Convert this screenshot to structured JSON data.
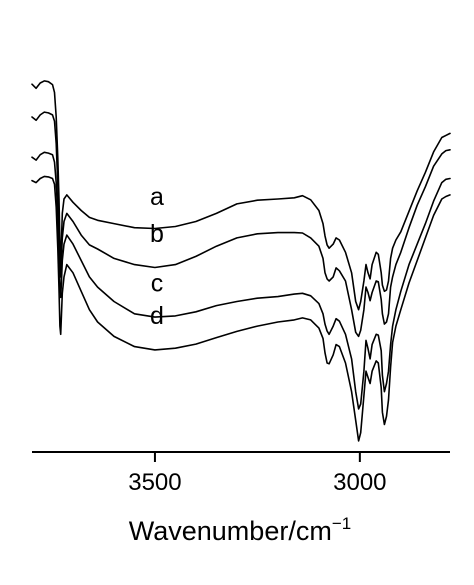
{
  "chart_data": {
    "type": "line",
    "xlabel": "Wavenumber/cm",
    "xlabel_superscript": "−1",
    "x_reversed": true,
    "xlim": [
      3800,
      2780
    ],
    "y_ticks_shown": false,
    "grid": false,
    "x_ticks": [
      {
        "value": 3500,
        "label": "3500"
      },
      {
        "value": 3000,
        "label": "3000"
      }
    ],
    "series": [
      {
        "name": "a",
        "points": [
          [
            3800,
            0.88
          ],
          [
            3790,
            0.87
          ],
          [
            3780,
            0.883
          ],
          [
            3770,
            0.888
          ],
          [
            3760,
            0.886
          ],
          [
            3750,
            0.879
          ],
          [
            3745,
            0.86
          ],
          [
            3741,
            0.8
          ],
          [
            3737,
            0.7
          ],
          [
            3734,
            0.6
          ],
          [
            3732,
            0.49
          ],
          [
            3730,
            0.44
          ],
          [
            3728,
            0.5
          ],
          [
            3726,
            0.565
          ],
          [
            3722,
            0.6
          ],
          [
            3715,
            0.61
          ],
          [
            3700,
            0.592
          ],
          [
            3680,
            0.572
          ],
          [
            3660,
            0.555
          ],
          [
            3640,
            0.548
          ],
          [
            3600,
            0.54
          ],
          [
            3550,
            0.53
          ],
          [
            3500,
            0.528
          ],
          [
            3450,
            0.533
          ],
          [
            3400,
            0.545
          ],
          [
            3350,
            0.565
          ],
          [
            3300,
            0.588
          ],
          [
            3250,
            0.597
          ],
          [
            3200,
            0.6
          ],
          [
            3160,
            0.603
          ],
          [
            3140,
            0.608
          ],
          [
            3120,
            0.598
          ],
          [
            3100,
            0.572
          ],
          [
            3090,
            0.54
          ],
          [
            3085,
            0.51
          ],
          [
            3080,
            0.488
          ],
          [
            3075,
            0.48
          ],
          [
            3065,
            0.49
          ],
          [
            3058,
            0.505
          ],
          [
            3050,
            0.5
          ],
          [
            3035,
            0.47
          ],
          [
            3020,
            0.42
          ],
          [
            3010,
            0.35
          ],
          [
            3003,
            0.33
          ],
          [
            2998,
            0.35
          ],
          [
            2990,
            0.4
          ],
          [
            2985,
            0.44
          ],
          [
            2980,
            0.42
          ],
          [
            2975,
            0.405
          ],
          [
            2970,
            0.44
          ],
          [
            2960,
            0.47
          ],
          [
            2955,
            0.465
          ],
          [
            2948,
            0.42
          ],
          [
            2945,
            0.39
          ],
          [
            2940,
            0.375
          ],
          [
            2935,
            0.378
          ],
          [
            2930,
            0.4
          ],
          [
            2925,
            0.455
          ],
          [
            2920,
            0.48
          ],
          [
            2912,
            0.5
          ],
          [
            2900,
            0.52
          ],
          [
            2880,
            0.57
          ],
          [
            2860,
            0.62
          ],
          [
            2840,
            0.665
          ],
          [
            2820,
            0.715
          ],
          [
            2800,
            0.75
          ],
          [
            2790,
            0.755
          ],
          [
            2780,
            0.76
          ]
        ]
      },
      {
        "name": "b",
        "points": [
          [
            3800,
            0.8
          ],
          [
            3790,
            0.792
          ],
          [
            3780,
            0.805
          ],
          [
            3770,
            0.812
          ],
          [
            3760,
            0.81
          ],
          [
            3750,
            0.805
          ],
          [
            3745,
            0.79
          ],
          [
            3741,
            0.735
          ],
          [
            3737,
            0.635
          ],
          [
            3734,
            0.53
          ],
          [
            3732,
            0.43
          ],
          [
            3730,
            0.41
          ],
          [
            3728,
            0.46
          ],
          [
            3726,
            0.505
          ],
          [
            3722,
            0.545
          ],
          [
            3715,
            0.565
          ],
          [
            3700,
            0.545
          ],
          [
            3680,
            0.512
          ],
          [
            3660,
            0.488
          ],
          [
            3640,
            0.478
          ],
          [
            3600,
            0.455
          ],
          [
            3550,
            0.44
          ],
          [
            3500,
            0.433
          ],
          [
            3450,
            0.44
          ],
          [
            3400,
            0.46
          ],
          [
            3350,
            0.485
          ],
          [
            3300,
            0.505
          ],
          [
            3250,
            0.515
          ],
          [
            3200,
            0.518
          ],
          [
            3160,
            0.518
          ],
          [
            3140,
            0.517
          ],
          [
            3120,
            0.505
          ],
          [
            3100,
            0.485
          ],
          [
            3090,
            0.455
          ],
          [
            3085,
            0.42
          ],
          [
            3080,
            0.405
          ],
          [
            3075,
            0.4
          ],
          [
            3065,
            0.41
          ],
          [
            3058,
            0.432
          ],
          [
            3050,
            0.425
          ],
          [
            3035,
            0.4
          ],
          [
            3020,
            0.33
          ],
          [
            3010,
            0.275
          ],
          [
            3003,
            0.265
          ],
          [
            2998,
            0.28
          ],
          [
            2990,
            0.33
          ],
          [
            2985,
            0.385
          ],
          [
            2980,
            0.372
          ],
          [
            2975,
            0.352
          ],
          [
            2970,
            0.372
          ],
          [
            2960,
            0.4
          ],
          [
            2955,
            0.398
          ],
          [
            2948,
            0.355
          ],
          [
            2945,
            0.32
          ],
          [
            2940,
            0.295
          ],
          [
            2935,
            0.3
          ],
          [
            2930,
            0.32
          ],
          [
            2925,
            0.385
          ],
          [
            2920,
            0.41
          ],
          [
            2912,
            0.44
          ],
          [
            2900,
            0.47
          ],
          [
            2880,
            0.53
          ],
          [
            2860,
            0.585
          ],
          [
            2840,
            0.63
          ],
          [
            2820,
            0.68
          ],
          [
            2800,
            0.71
          ],
          [
            2790,
            0.718
          ],
          [
            2780,
            0.72
          ]
        ]
      },
      {
        "name": "c",
        "points": [
          [
            3800,
            0.702
          ],
          [
            3790,
            0.695
          ],
          [
            3780,
            0.708
          ],
          [
            3770,
            0.714
          ],
          [
            3760,
            0.712
          ],
          [
            3750,
            0.708
          ],
          [
            3745,
            0.69
          ],
          [
            3741,
            0.64
          ],
          [
            3737,
            0.56
          ],
          [
            3734,
            0.47
          ],
          [
            3732,
            0.385
          ],
          [
            3730,
            0.36
          ],
          [
            3728,
            0.4
          ],
          [
            3726,
            0.45
          ],
          [
            3722,
            0.49
          ],
          [
            3715,
            0.512
          ],
          [
            3700,
            0.49
          ],
          [
            3680,
            0.45
          ],
          [
            3660,
            0.41
          ],
          [
            3640,
            0.385
          ],
          [
            3600,
            0.35
          ],
          [
            3550,
            0.32
          ],
          [
            3500,
            0.312
          ],
          [
            3450,
            0.315
          ],
          [
            3400,
            0.325
          ],
          [
            3350,
            0.34
          ],
          [
            3300,
            0.35
          ],
          [
            3250,
            0.358
          ],
          [
            3200,
            0.362
          ],
          [
            3160,
            0.368
          ],
          [
            3140,
            0.37
          ],
          [
            3120,
            0.364
          ],
          [
            3100,
            0.345
          ],
          [
            3090,
            0.32
          ],
          [
            3085,
            0.295
          ],
          [
            3080,
            0.278
          ],
          [
            3075,
            0.27
          ],
          [
            3065,
            0.29
          ],
          [
            3058,
            0.308
          ],
          [
            3050,
            0.302
          ],
          [
            3035,
            0.27
          ],
          [
            3020,
            0.21
          ],
          [
            3010,
            0.13
          ],
          [
            3003,
            0.088
          ],
          [
            2998,
            0.1
          ],
          [
            2990,
            0.18
          ],
          [
            2985,
            0.255
          ],
          [
            2980,
            0.235
          ],
          [
            2975,
            0.21
          ],
          [
            2970,
            0.245
          ],
          [
            2960,
            0.27
          ],
          [
            2955,
            0.268
          ],
          [
            2948,
            0.23
          ],
          [
            2945,
            0.17
          ],
          [
            2940,
            0.13
          ],
          [
            2935,
            0.15
          ],
          [
            2930,
            0.18
          ],
          [
            2925,
            0.245
          ],
          [
            2920,
            0.29
          ],
          [
            2912,
            0.33
          ],
          [
            2900,
            0.375
          ],
          [
            2880,
            0.44
          ],
          [
            2860,
            0.49
          ],
          [
            2840,
            0.54
          ],
          [
            2820,
            0.595
          ],
          [
            2800,
            0.64
          ],
          [
            2790,
            0.648
          ],
          [
            2780,
            0.65
          ]
        ]
      },
      {
        "name": "d",
        "points": [
          [
            3800,
            0.645
          ],
          [
            3790,
            0.64
          ],
          [
            3780,
            0.65
          ],
          [
            3770,
            0.655
          ],
          [
            3760,
            0.654
          ],
          [
            3750,
            0.65
          ],
          [
            3745,
            0.636
          ],
          [
            3741,
            0.58
          ],
          [
            3737,
            0.48
          ],
          [
            3734,
            0.38
          ],
          [
            3732,
            0.29
          ],
          [
            3730,
            0.27
          ],
          [
            3728,
            0.32
          ],
          [
            3726,
            0.37
          ],
          [
            3722,
            0.41
          ],
          [
            3715,
            0.44
          ],
          [
            3700,
            0.42
          ],
          [
            3680,
            0.375
          ],
          [
            3660,
            0.33
          ],
          [
            3640,
            0.3
          ],
          [
            3600,
            0.265
          ],
          [
            3550,
            0.24
          ],
          [
            3500,
            0.232
          ],
          [
            3450,
            0.236
          ],
          [
            3400,
            0.246
          ],
          [
            3350,
            0.262
          ],
          [
            3300,
            0.277
          ],
          [
            3250,
            0.29
          ],
          [
            3200,
            0.3
          ],
          [
            3160,
            0.305
          ],
          [
            3140,
            0.31
          ],
          [
            3120,
            0.305
          ],
          [
            3100,
            0.285
          ],
          [
            3090,
            0.26
          ],
          [
            3085,
            0.225
          ],
          [
            3080,
            0.2
          ],
          [
            3075,
            0.198
          ],
          [
            3065,
            0.22
          ],
          [
            3058,
            0.245
          ],
          [
            3050,
            0.24
          ],
          [
            3035,
            0.2
          ],
          [
            3020,
            0.13
          ],
          [
            3010,
            0.06
          ],
          [
            3003,
            0.01
          ],
          [
            2998,
            0.03
          ],
          [
            2990,
            0.12
          ],
          [
            2985,
            0.18
          ],
          [
            2980,
            0.165
          ],
          [
            2975,
            0.15
          ],
          [
            2970,
            0.18
          ],
          [
            2960,
            0.205
          ],
          [
            2955,
            0.2
          ],
          [
            2948,
            0.14
          ],
          [
            2945,
            0.08
          ],
          [
            2940,
            0.05
          ],
          [
            2935,
            0.07
          ],
          [
            2930,
            0.11
          ],
          [
            2925,
            0.19
          ],
          [
            2920,
            0.25
          ],
          [
            2912,
            0.29
          ],
          [
            2900,
            0.33
          ],
          [
            2880,
            0.395
          ],
          [
            2860,
            0.45
          ],
          [
            2840,
            0.505
          ],
          [
            2820,
            0.56
          ],
          [
            2800,
            0.6
          ],
          [
            2790,
            0.606
          ],
          [
            2780,
            0.61
          ]
        ]
      }
    ]
  }
}
